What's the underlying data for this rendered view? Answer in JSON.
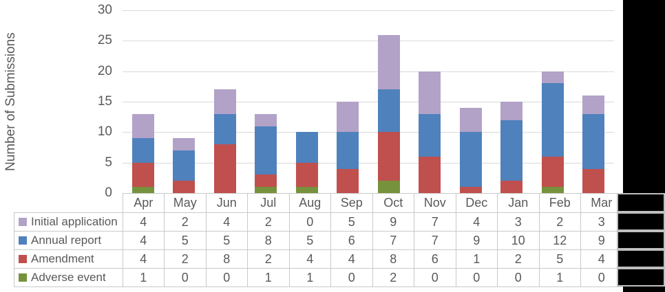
{
  "y_axis": {
    "title": "Number of Submissions",
    "ticks": [
      30,
      25,
      20,
      15,
      10,
      5,
      0
    ]
  },
  "chart_data": {
    "type": "bar",
    "stacked": true,
    "categories": [
      "Apr",
      "May",
      "Jun",
      "Jul",
      "Aug",
      "Sep",
      "Oct",
      "Nov",
      "Dec",
      "Jan",
      "Feb",
      "Mar"
    ],
    "series": [
      {
        "name": "Initial application",
        "color": "#b2a2c7",
        "values": [
          4,
          2,
          4,
          2,
          0,
          5,
          9,
          7,
          4,
          3,
          2,
          3
        ]
      },
      {
        "name": "Annual report",
        "color": "#4f81bd",
        "values": [
          4,
          5,
          5,
          8,
          5,
          6,
          7,
          7,
          9,
          10,
          12,
          9
        ]
      },
      {
        "name": "Amendment",
        "color": "#c0504d",
        "values": [
          4,
          2,
          8,
          2,
          4,
          4,
          8,
          6,
          1,
          2,
          5,
          4
        ]
      },
      {
        "name": "Adverse event",
        "color": "#76923c",
        "values": [
          1,
          0,
          0,
          1,
          1,
          0,
          2,
          0,
          0,
          0,
          1,
          0
        ]
      }
    ],
    "stack_order_bottom_to_top": [
      "Adverse event",
      "Amendment",
      "Annual report",
      "Initial application"
    ],
    "ylabel": "Number of Submissions",
    "ylim": [
      0,
      30
    ],
    "ytick_step": 5,
    "grid": true,
    "legend_position": "table-left-column"
  },
  "colors": {
    "text": "#595959",
    "gridline": "#d9d9d9",
    "table_border": "#c9c9c9",
    "redaction_fill": "#000000",
    "redaction_border": "#bfbfbf",
    "background": "#ffffff"
  }
}
